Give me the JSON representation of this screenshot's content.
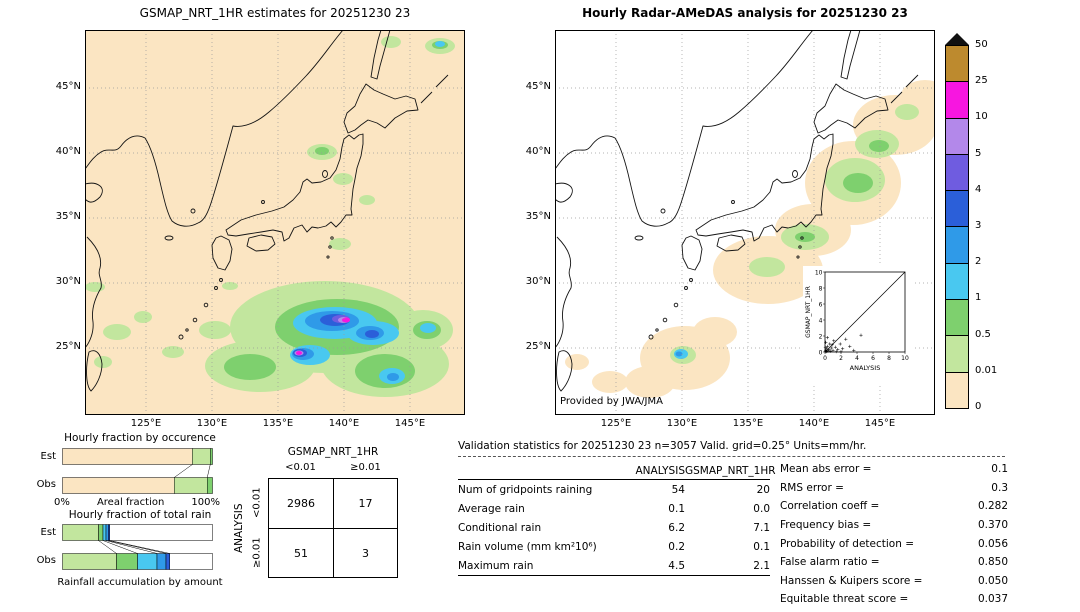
{
  "chart_data": [
    {
      "type": "heatmap",
      "id": "gsmap_map",
      "title": "GSMAP_NRT_1HR estimates for 20251230 23",
      "lat_ticks": [
        "45°N",
        "40°N",
        "35°N",
        "30°N",
        "25°N"
      ],
      "lon_ticks": [
        "125°E",
        "130°E",
        "135°E",
        "140°E",
        "145°E"
      ],
      "lat_range": [
        20,
        49.5
      ],
      "lon_range": [
        120.5,
        149
      ],
      "units": "mm/hr",
      "levels": [
        0,
        0.01,
        0.5,
        1,
        2,
        3,
        4,
        5,
        10,
        25,
        50
      ],
      "palette": [
        "#fbe5c2",
        "#c2e69e",
        "#7ed06e",
        "#49c8f0",
        "#2f9ae8",
        "#2b5fd9",
        "#6f5ce0",
        "#b388ea",
        "#f716e0",
        "#bd8a2e"
      ],
      "overflow_color": "#111111",
      "features": [
        "Large rain system south of Japan (~22-29N, 130-148E) with 0.01-2 mm/hr shading and embedded cores of 3-25 mm/hr near 26N 138E and 25N 135E",
        "Scattered light rain (0.01-1 mm/hr) over the East China Sea and the Sea of Japan",
        "Small convective cell northeast of Hokkaido reaching 1-3 mm/hr",
        "No-rain background shaded pale cream over the whole domain"
      ]
    },
    {
      "type": "heatmap",
      "id": "radar_map",
      "title": "Hourly Radar-AMeDAS analysis for 20251230 23",
      "credit": "Provided by JWA/JMA",
      "lat_ticks": [
        "45°N",
        "40°N",
        "35°N",
        "30°N",
        "25°N"
      ],
      "lon_ticks": [
        "125°E",
        "130°E",
        "135°E",
        "140°E",
        "145°E"
      ],
      "lat_range": [
        20,
        49.5
      ],
      "lon_range": [
        120.5,
        149
      ],
      "units": "mm/hr",
      "levels": [
        0,
        0.01,
        0.5,
        1,
        2,
        3,
        4,
        5,
        10,
        25,
        50
      ],
      "palette": [
        "#fbe5c2",
        "#c2e69e",
        "#7ed06e",
        "#49c8f0",
        "#2f9ae8",
        "#2b5fd9",
        "#6f5ce0",
        "#b388ea",
        "#f716e0",
        "#bd8a2e"
      ],
      "features": [
        "Light rain (0.01-1 mm/hr) band along the Pacific side of Honshu and southern Hokkaido",
        "Rain cells around Okinawa (~26N 128E) with small cores of 1-3 mm/hr",
        "Pale cream halo marks radar coverage along the Japanese archipelago; white elsewhere"
      ]
    },
    {
      "type": "bar",
      "id": "occurrence",
      "title": "Hourly fraction by occurence",
      "xlabel": "Areal fraction",
      "x_range": [
        "0%",
        "100%"
      ],
      "rows": [
        "Est",
        "Obs"
      ],
      "series": [
        {
          "name": "Est",
          "segments": [
            {
              "level": "<0.01",
              "color": "#fbe5c2",
              "pct": 86.5
            },
            {
              "level": "0.01-0.5",
              "color": "#c2e69e",
              "pct": 12
            },
            {
              "level": "0.5-1",
              "color": "#7ed06e",
              "pct": 1.5
            }
          ]
        },
        {
          "name": "Obs",
          "segments": [
            {
              "level": "<0.01",
              "color": "#fbe5c2",
              "pct": 74.5
            },
            {
              "level": "0.01-0.5",
              "color": "#c2e69e",
              "pct": 22
            },
            {
              "level": "0.5-1",
              "color": "#7ed06e",
              "pct": 3.5
            }
          ]
        }
      ]
    },
    {
      "type": "bar",
      "id": "totalrain",
      "title": "Hourly fraction of total rain",
      "xlabel": "Rainfall accumulation by amount",
      "rows": [
        "Est",
        "Obs"
      ],
      "series": [
        {
          "name": "Est",
          "segments": [
            {
              "level": "0.01-0.5",
              "color": "#c2e69e",
              "pct": 24
            },
            {
              "level": "0.5-1",
              "color": "#7ed06e",
              "pct": 3
            },
            {
              "level": "1-2",
              "color": "#49c8f0",
              "pct": 2
            },
            {
              "level": "2-3",
              "color": "#2f9ae8",
              "pct": 1.5
            },
            {
              "level": "3-4",
              "color": "#2b5fd9",
              "pct": 1
            },
            {
              "level": "rest",
              "color": "#ffffff",
              "pct": 68.5
            }
          ]
        },
        {
          "name": "Obs",
          "segments": [
            {
              "level": "0.01-0.5",
              "color": "#c2e69e",
              "pct": 36
            },
            {
              "level": "0.5-1",
              "color": "#7ed06e",
              "pct": 14
            },
            {
              "level": "1-2",
              "color": "#49c8f0",
              "pct": 13
            },
            {
              "level": "2-3",
              "color": "#2f9ae8",
              "pct": 6
            },
            {
              "level": "3-4",
              "color": "#2b5fd9",
              "pct": 2.5
            },
            {
              "level": "rest",
              "color": "#ffffff",
              "pct": 28.5
            }
          ]
        }
      ]
    },
    {
      "type": "scatter",
      "id": "inset",
      "xlabel": "ANALYSIS",
      "ylabel": "GSMAP_NRT_1HR",
      "xlim": [
        0,
        10
      ],
      "ylim": [
        0,
        10
      ],
      "ticks": [
        "0",
        "2",
        "4",
        "6",
        "8",
        "10"
      ],
      "diagonal": true,
      "marker": "+",
      "points": [
        [
          0.05,
          0.05
        ],
        [
          0.1,
          0.2
        ],
        [
          0.15,
          0.05
        ],
        [
          0.2,
          0.4
        ],
        [
          0.25,
          0.1
        ],
        [
          0.3,
          0.7
        ],
        [
          0.4,
          0.15
        ],
        [
          0.5,
          0.3
        ],
        [
          0.6,
          1.0
        ],
        [
          0.7,
          0.1
        ],
        [
          0.8,
          0.5
        ],
        [
          1.0,
          0.2
        ],
        [
          1.1,
          1.4
        ],
        [
          1.3,
          0.6
        ],
        [
          1.6,
          0.3
        ],
        [
          1.9,
          1.0
        ],
        [
          2.2,
          0.4
        ],
        [
          2.6,
          1.6
        ],
        [
          3.1,
          0.7
        ],
        [
          3.6,
          0.2
        ],
        [
          4.5,
          2.1
        ],
        [
          0.1,
          1.2
        ],
        [
          0.3,
          1.8
        ],
        [
          0.05,
          0.6
        ],
        [
          1.4,
          0.05
        ],
        [
          2.0,
          0.05
        ],
        [
          0.9,
          0.9
        ]
      ]
    },
    {
      "type": "table",
      "id": "contingency",
      "col_group": "GSMAP_NRT_1HR",
      "row_group": "ANALYSIS",
      "col_labels": [
        "<0.01",
        "≥0.01"
      ],
      "row_labels": [
        "<0.01",
        "≥0.01"
      ],
      "cells": [
        [
          "2986",
          "17"
        ],
        [
          "51",
          "3"
        ]
      ]
    },
    {
      "type": "table",
      "id": "validation",
      "title": "Validation statistics for 20251230 23  n=3057 Valid. grid=0.25° Units=mm/hr.",
      "columns": [
        "ANALYSIS",
        "GSMAP_NRT_1HR"
      ],
      "rows": [
        {
          "label": "Num of gridpoints raining",
          "values": [
            "54",
            "20"
          ]
        },
        {
          "label": "Average rain",
          "values": [
            "0.1",
            "0.0"
          ]
        },
        {
          "label": "Conditional rain",
          "values": [
            "6.2",
            "7.1"
          ]
        },
        {
          "label": "Rain volume (mm km²10⁶)",
          "values": [
            "0.2",
            "0.1"
          ]
        },
        {
          "label": "Maximum rain",
          "values": [
            "4.5",
            "2.1"
          ]
        }
      ],
      "metrics": [
        {
          "label": "Mean abs error =",
          "value": "0.1"
        },
        {
          "label": "RMS error =",
          "value": "0.3"
        },
        {
          "label": "Correlation coeff =",
          "value": "0.282"
        },
        {
          "label": "Frequency bias =",
          "value": "0.370"
        },
        {
          "label": "Probability of detection =",
          "value": "0.056"
        },
        {
          "label": "False alarm ratio =",
          "value": "0.850"
        },
        {
          "label": "Hanssen & Kuipers score =",
          "value": "0.050"
        },
        {
          "label": "Equitable threat score =",
          "value": "0.037"
        }
      ]
    }
  ]
}
